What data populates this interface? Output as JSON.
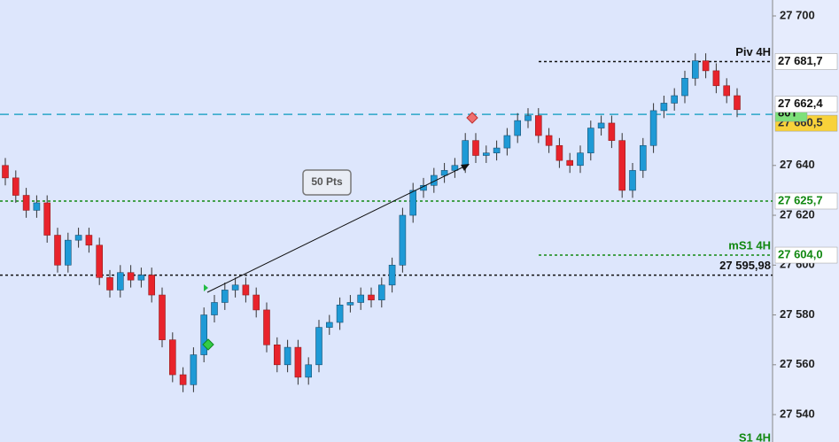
{
  "chart_data": {
    "type": "candlestick",
    "up_color": "#1e9ad6",
    "down_color": "#e8232b",
    "open": [
      27640,
      27635,
      27628,
      27622,
      27625,
      27612,
      27600,
      27610,
      27612,
      27608,
      27595,
      27590,
      27597,
      27594,
      27596,
      27588,
      27570,
      27556,
      27552,
      27564,
      27580,
      27585,
      27590,
      27592,
      27588,
      27582,
      27568,
      27560,
      27567,
      27555,
      27560,
      27575,
      27577,
      27584,
      27585,
      27588,
      27586,
      27592,
      27600,
      27620,
      27630,
      27632,
      27636,
      27638,
      27640,
      27650,
      27644,
      27645,
      27647,
      27652,
      27658,
      27660,
      27652,
      27648,
      27642,
      27640,
      27645,
      27655,
      27657,
      27650,
      27630,
      27638,
      27648,
      27662,
      27665,
      27668,
      27675,
      27682,
      27678,
      27672,
      27668
    ],
    "high": [
      27643,
      27638,
      27631,
      27628,
      27628,
      27615,
      27613,
      27615,
      27615,
      27611,
      27598,
      27600,
      27600,
      27599,
      27599,
      27591,
      27573,
      27559,
      27567,
      27583,
      27588,
      27593,
      27595,
      27595,
      27591,
      27585,
      27571,
      27570,
      27570,
      27563,
      27578,
      27580,
      27587,
      27588,
      27591,
      27591,
      27595,
      27603,
      27623,
      27633,
      27635,
      27639,
      27641,
      27643,
      27653,
      27653,
      27648,
      27650,
      27655,
      27661,
      27663,
      27663,
      27655,
      27651,
      27645,
      27648,
      27658,
      27660,
      27660,
      27653,
      27641,
      27651,
      27665,
      27668,
      27671,
      27678,
      27685,
      27685,
      27681,
      27675,
      27671
    ],
    "low": [
      27632,
      27625,
      27619,
      27619,
      27609,
      27597,
      27597,
      27607,
      27605,
      27592,
      27587,
      27587,
      27591,
      27591,
      27585,
      27567,
      27553,
      27549,
      27549,
      27561,
      27577,
      27582,
      27587,
      27585,
      27579,
      27565,
      27557,
      27557,
      27552,
      27552,
      27557,
      27572,
      27574,
      27581,
      27582,
      27583,
      27583,
      27589,
      27597,
      27617,
      27627,
      27629,
      27633,
      27635,
      27637,
      27641,
      27641,
      27642,
      27644,
      27649,
      27655,
      27649,
      27645,
      27639,
      27637,
      27637,
      27642,
      27652,
      27647,
      27627,
      27627,
      27635,
      27645,
      27659,
      27662,
      27665,
      27672,
      27675,
      27669,
      27665,
      27659.4
    ],
    "close": [
      27635,
      27628,
      27622,
      27625,
      27612,
      27600,
      27610,
      27612,
      27608,
      27595,
      27590,
      27597,
      27594,
      27596,
      27588,
      27570,
      27556,
      27552,
      27564,
      27580,
      27585,
      27590,
      27592,
      27588,
      27582,
      27568,
      27560,
      27567,
      27555,
      27560,
      27575,
      27577,
      27584,
      27585,
      27588,
      27586,
      27592,
      27600,
      27620,
      27630,
      27632,
      27636,
      27638,
      27640,
      27650,
      27644,
      27645,
      27647,
      27652,
      27658,
      27660,
      27652,
      27648,
      27642,
      27640,
      27645,
      27655,
      27657,
      27650,
      27630,
      27638,
      27648,
      27662,
      27665,
      27668,
      27675,
      27682,
      27678,
      27672,
      27668,
      27662.4
    ],
    "ylim": [
      27529.0,
      27706.4
    ],
    "yticks": [
      {
        "value": 27700,
        "label": "27 700"
      },
      {
        "value": 27640,
        "label": "27 640"
      },
      {
        "value": 27620,
        "label": "27 620"
      },
      {
        "value": 27600,
        "label": "27 600"
      },
      {
        "value": 27580,
        "label": "27 580"
      },
      {
        "value": 27560,
        "label": "27 560"
      },
      {
        "value": 27540,
        "label": "27 540"
      }
    ],
    "levels": [
      {
        "name": "Piv 4H",
        "value": 27681.7,
        "label": "27 681,7",
        "color": "#111111"
      },
      {
        "value": 27660.5,
        "label": "27 660,5",
        "tag": "80T",
        "color": "#2aa6c8"
      },
      {
        "value": 27625.7,
        "label": "27 625,7",
        "color": "#118811"
      },
      {
        "name": "mS1 4H",
        "value": 27604.0,
        "label": "27 604,0",
        "color": "#118811"
      },
      {
        "value": 27595.98,
        "label": "27 595,98",
        "color": "#111111"
      }
    ],
    "last_price": {
      "value": 27662.4,
      "label": "27 662,4"
    },
    "annotations": [
      "50 Pts",
      "S1 4H"
    ]
  }
}
